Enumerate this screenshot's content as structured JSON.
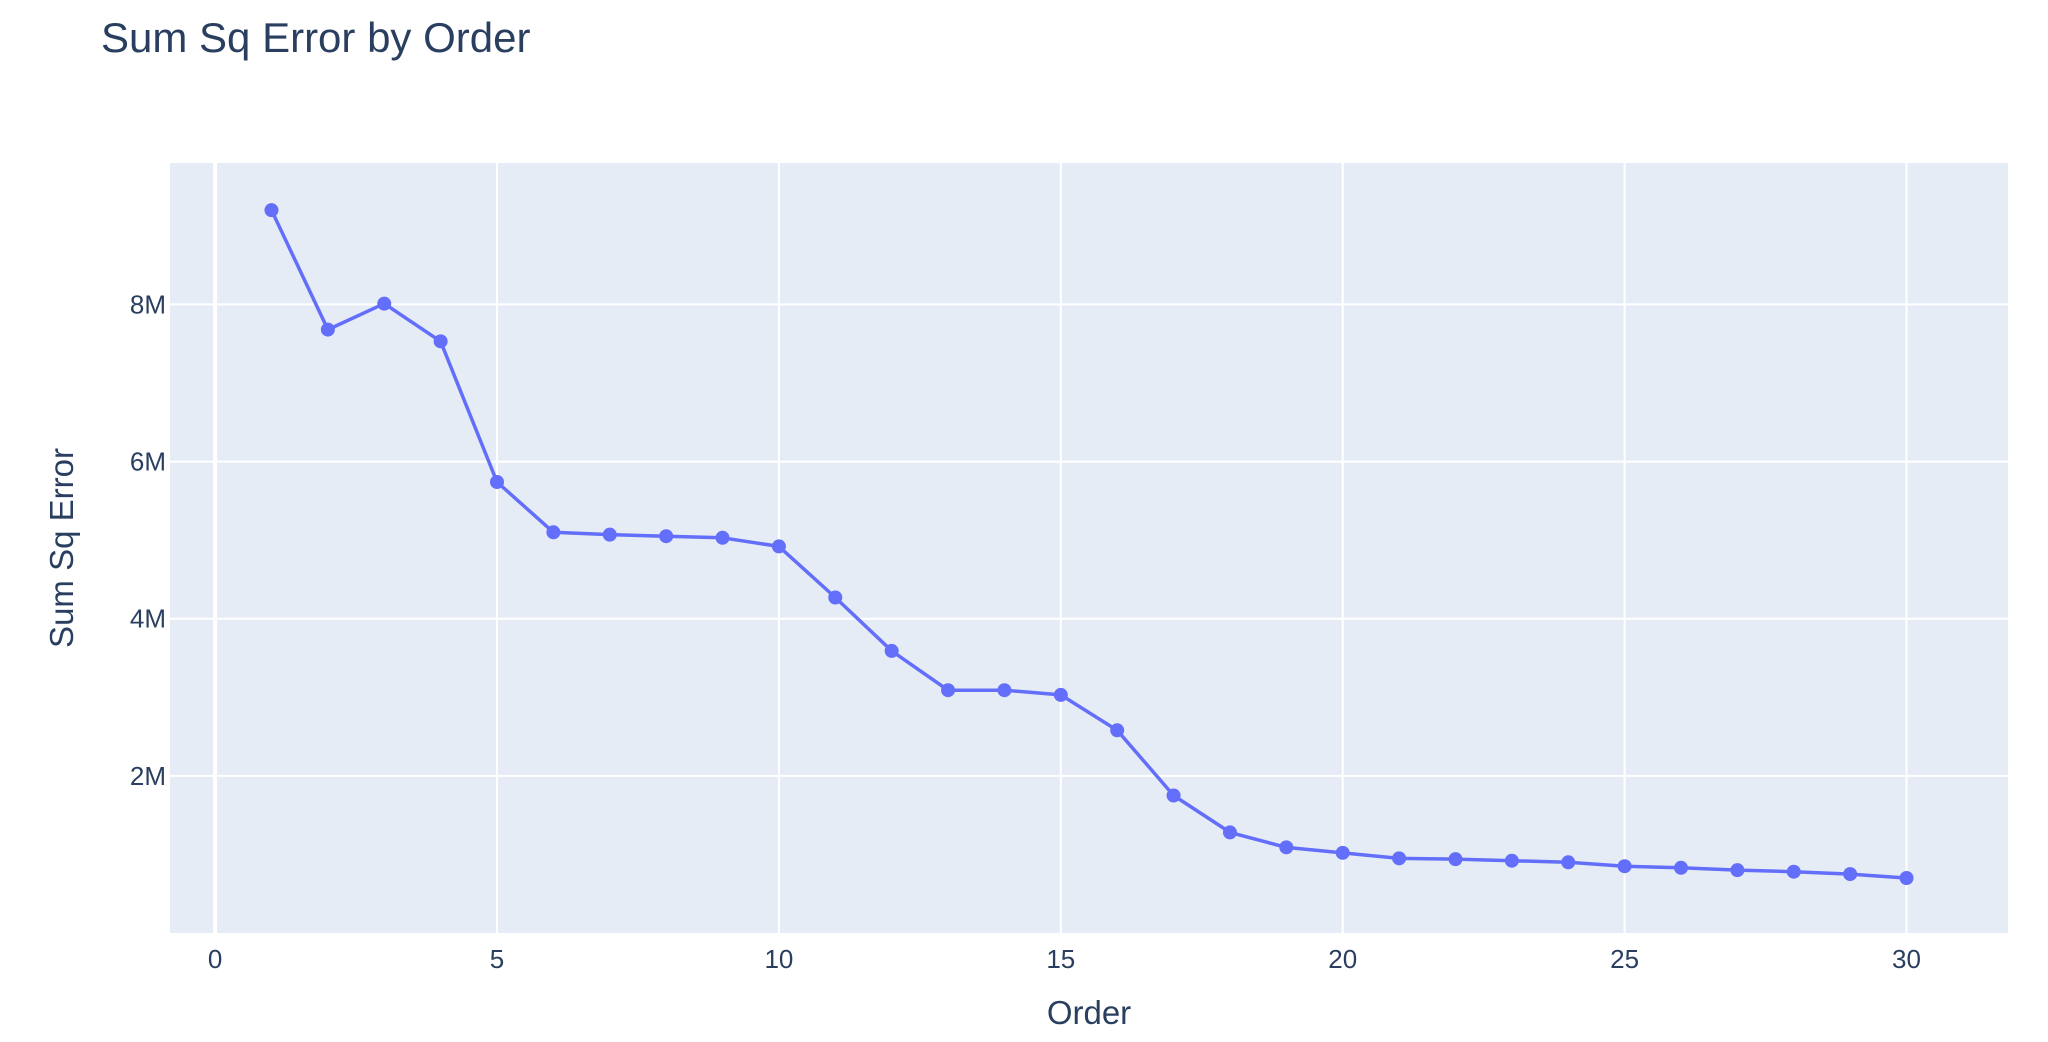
{
  "chart_data": {
    "type": "line",
    "title": "Sum Sq Error by Order",
    "xlabel": "Order",
    "ylabel": "Sum Sq Error",
    "xlim": [
      -0.8,
      31.8
    ],
    "ylim": [
      0,
      9800000
    ],
    "x_ticks": [
      {
        "value": 0,
        "label": "0"
      },
      {
        "value": 5,
        "label": "5"
      },
      {
        "value": 10,
        "label": "10"
      },
      {
        "value": 15,
        "label": "15"
      },
      {
        "value": 20,
        "label": "20"
      },
      {
        "value": 25,
        "label": "25"
      },
      {
        "value": 30,
        "label": "30"
      }
    ],
    "y_ticks": [
      {
        "value": 2000000,
        "label": "2M"
      },
      {
        "value": 4000000,
        "label": "4M"
      },
      {
        "value": 6000000,
        "label": "6M"
      },
      {
        "value": 8000000,
        "label": "8M"
      }
    ],
    "grid": true,
    "series": [
      {
        "color": "#636efa",
        "x": [
          1,
          2,
          3,
          4,
          5,
          6,
          7,
          8,
          9,
          10,
          11,
          12,
          13,
          14,
          15,
          16,
          17,
          18,
          19,
          20,
          21,
          22,
          23,
          24,
          25,
          26,
          27,
          28,
          29,
          30
        ],
        "values": [
          9200000,
          7680000,
          8010000,
          7530000,
          5740000,
          5100000,
          5070000,
          5050000,
          5030000,
          4920000,
          4270000,
          3590000,
          3090000,
          3090000,
          3030000,
          2580000,
          1750000,
          1280000,
          1090000,
          1020000,
          950000,
          940000,
          920000,
          900000,
          850000,
          830000,
          800000,
          780000,
          750000,
          700000
        ]
      }
    ]
  },
  "colors": {
    "plot_background": "#e5ecf6",
    "grid": "#ffffff",
    "line": "#636efa",
    "text": "#2a3f5f"
  }
}
